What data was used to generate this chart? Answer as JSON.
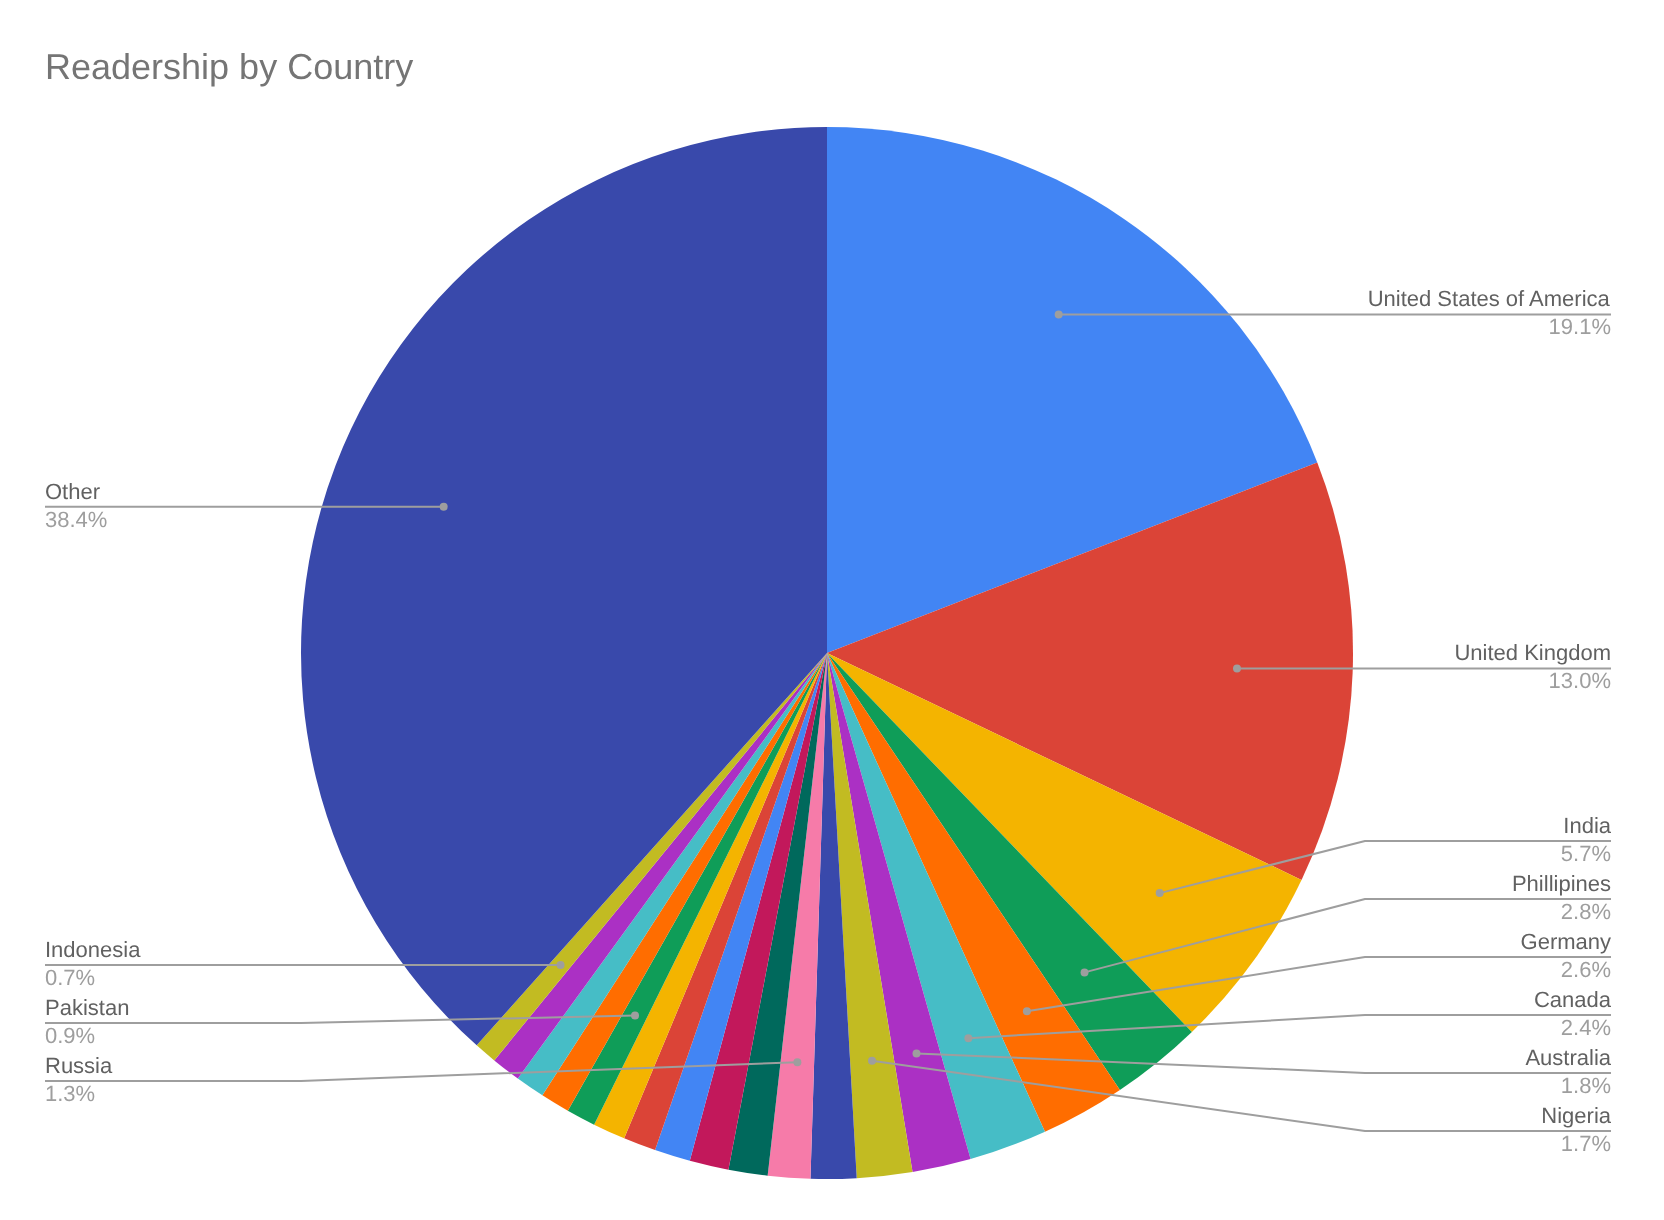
{
  "chart_data": {
    "type": "pie",
    "title": "Readership by Country",
    "categories": [
      "United States of America",
      "United Kingdom",
      "India",
      "Phillipines",
      "Germany",
      "Canada",
      "Australia",
      "Nigeria",
      null,
      "Russia",
      null,
      null,
      null,
      null,
      null,
      "Pakistan",
      null,
      null,
      null,
      "Indonesia",
      "Other"
    ],
    "values": [
      19.1,
      13.0,
      5.7,
      2.8,
      2.6,
      2.4,
      1.8,
      1.7,
      1.4,
      1.3,
      1.2,
      1.2,
      1.1,
      1.0,
      1.0,
      0.9,
      0.9,
      0.9,
      0.9,
      0.7,
      38.4
    ],
    "value_labels": [
      "19.1%",
      "13.0%",
      "5.7%",
      "2.8%",
      "2.6%",
      "2.4%",
      "1.8%",
      "1.7%",
      null,
      "1.3%",
      null,
      null,
      null,
      null,
      null,
      "0.9%",
      null,
      null,
      null,
      "0.7%",
      "38.4%"
    ],
    "colors": [
      "#4285f4",
      "#db4437",
      "#f4b400",
      "#0f9d58",
      "#ff6d00",
      "#46bdc6",
      "#ab30c4",
      "#c2bb22",
      "#3949ab",
      "#f67ba9",
      "#00695c",
      "#c2185b",
      "#4285f4",
      "#db4437",
      "#f4b400",
      "#0f9d58",
      "#ff6d00",
      "#46bdc6",
      "#ab30c4",
      "#c2bb22",
      "#3949ab"
    ]
  }
}
